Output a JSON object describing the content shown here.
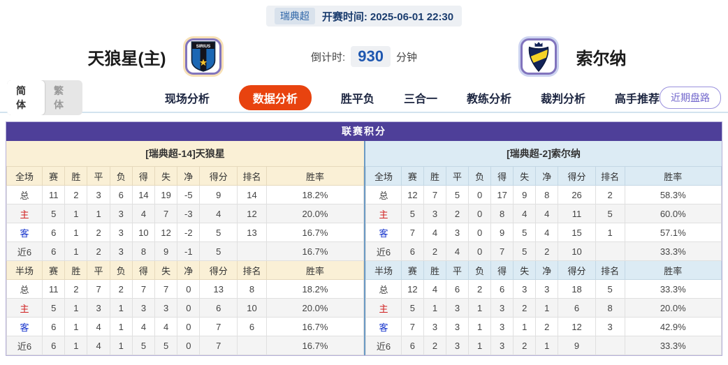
{
  "topbar": {
    "league": "瑞典超",
    "kickoff_label": "开赛时间:",
    "kickoff_time": "2025-06-01 22:30"
  },
  "match": {
    "home_name": "天狼星(主)",
    "away_name": "索尔纳",
    "home_logo": "sirius-crest",
    "home_logo_text": "SIRIUS",
    "away_logo": "aik-crest",
    "countdown_label": "倒计时:",
    "countdown_value": "930",
    "countdown_unit": "分钟"
  },
  "nav": {
    "lang": {
      "simplified": "简体",
      "traditional": "繁体"
    },
    "items": [
      {
        "label": "现场分析",
        "active": false
      },
      {
        "label": "数据分析",
        "active": true
      },
      {
        "label": "胜平负",
        "active": false
      },
      {
        "label": "三合一",
        "active": false
      },
      {
        "label": "教练分析",
        "active": false
      },
      {
        "label": "裁判分析",
        "active": false
      },
      {
        "label": "高手推荐",
        "active": false
      }
    ],
    "recent_button": "近期盘路"
  },
  "standings": {
    "title": "联赛积分",
    "columns_full": [
      "全场",
      "赛",
      "胜",
      "平",
      "负",
      "得",
      "失",
      "净",
      "得分",
      "排名",
      "胜率"
    ],
    "columns_half": [
      "半场",
      "赛",
      "胜",
      "平",
      "负",
      "得",
      "失",
      "净",
      "得分",
      "排名",
      "胜率"
    ],
    "col_widths": [
      "10%",
      "6.3%",
      "6.3%",
      "6.3%",
      "6.3%",
      "6.3%",
      "6.3%",
      "6.3%",
      "10.5%",
      "8.2%",
      "27.2%"
    ],
    "teams": [
      {
        "header": "[瑞典超-14]天狼星",
        "theme": "cream",
        "full": [
          {
            "label": "总",
            "cells": [
              "11",
              "2",
              "3",
              "6",
              "14",
              "19",
              "-5",
              "9",
              "14",
              "18.2%"
            ]
          },
          {
            "label": "主",
            "cells": [
              "5",
              "1",
              "1",
              "3",
              "4",
              "7",
              "-3",
              "4",
              "12",
              "20.0%"
            ]
          },
          {
            "label": "客",
            "cells": [
              "6",
              "1",
              "2",
              "3",
              "10",
              "12",
              "-2",
              "5",
              "13",
              "16.7%"
            ]
          },
          {
            "label": "近6",
            "cells": [
              "6",
              "1",
              "2",
              "3",
              "8",
              "9",
              "-1",
              "5",
              "",
              "16.7%"
            ]
          }
        ],
        "half": [
          {
            "label": "总",
            "cells": [
              "11",
              "2",
              "7",
              "2",
              "7",
              "7",
              "0",
              "13",
              "8",
              "18.2%"
            ]
          },
          {
            "label": "主",
            "cells": [
              "5",
              "1",
              "3",
              "1",
              "3",
              "3",
              "0",
              "6",
              "10",
              "20.0%"
            ]
          },
          {
            "label": "客",
            "cells": [
              "6",
              "1",
              "4",
              "1",
              "4",
              "4",
              "0",
              "7",
              "6",
              "16.7%"
            ]
          },
          {
            "label": "近6",
            "cells": [
              "6",
              "1",
              "4",
              "1",
              "5",
              "5",
              "0",
              "7",
              "",
              "16.7%"
            ]
          }
        ]
      },
      {
        "header": "[瑞典超-2]索尔纳",
        "theme": "blue",
        "full": [
          {
            "label": "总",
            "cells": [
              "12",
              "7",
              "5",
              "0",
              "17",
              "9",
              "8",
              "26",
              "2",
              "58.3%"
            ]
          },
          {
            "label": "主",
            "cells": [
              "5",
              "3",
              "2",
              "0",
              "8",
              "4",
              "4",
              "11",
              "5",
              "60.0%"
            ]
          },
          {
            "label": "客",
            "cells": [
              "7",
              "4",
              "3",
              "0",
              "9",
              "5",
              "4",
              "15",
              "1",
              "57.1%"
            ]
          },
          {
            "label": "近6",
            "cells": [
              "6",
              "2",
              "4",
              "0",
              "7",
              "5",
              "2",
              "10",
              "",
              "33.3%"
            ]
          }
        ],
        "half": [
          {
            "label": "总",
            "cells": [
              "12",
              "4",
              "6",
              "2",
              "6",
              "3",
              "3",
              "18",
              "5",
              "33.3%"
            ]
          },
          {
            "label": "主",
            "cells": [
              "5",
              "1",
              "3",
              "1",
              "3",
              "2",
              "1",
              "6",
              "8",
              "20.0%"
            ]
          },
          {
            "label": "客",
            "cells": [
              "7",
              "3",
              "3",
              "1",
              "3",
              "1",
              "2",
              "12",
              "3",
              "42.9%"
            ]
          },
          {
            "label": "近6",
            "cells": [
              "6",
              "2",
              "3",
              "1",
              "3",
              "2",
              "1",
              "9",
              "",
              "33.3%"
            ]
          }
        ]
      }
    ]
  },
  "colors": {
    "purple": "#4e3f99",
    "cream": "#faf0d6",
    "lightblue": "#dcebf4",
    "accent": "#e8430f",
    "home_red": "#d02020",
    "away_blue": "#1533cc",
    "navy": "#1a3c6e",
    "divider": "#6b9ac4",
    "outer_border": "#b5afd8"
  }
}
